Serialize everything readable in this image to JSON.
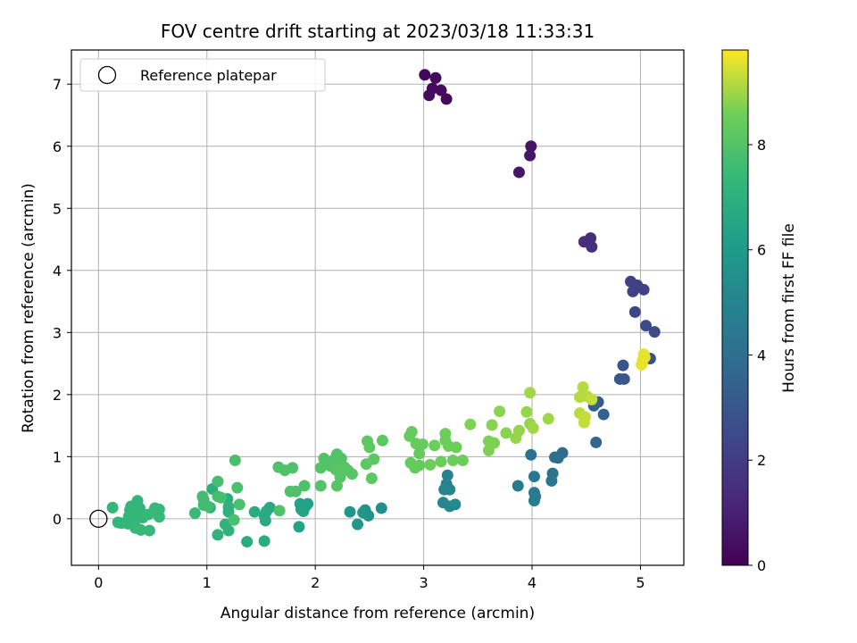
{
  "chart_data": {
    "type": "scatter",
    "title": "FOV centre drift starting at 2023/03/18 11:33:31",
    "xlabel": "Angular distance from reference (arcmin)",
    "ylabel": "Rotation from reference (arcmin)",
    "xlim": [
      -0.25,
      5.4
    ],
    "ylim": [
      -0.75,
      7.55
    ],
    "xticks": [
      0,
      1,
      2,
      3,
      4,
      5
    ],
    "yticks": [
      0,
      1,
      2,
      3,
      4,
      5,
      6,
      7
    ],
    "grid": true,
    "legend": {
      "position": "top-left",
      "entries": [
        "Reference platepar"
      ]
    },
    "reference_point": {
      "x": 0,
      "y": 0,
      "label": "Reference platepar"
    },
    "colorbar": {
      "label": "Hours from first FF file",
      "range": [
        0,
        9.8
      ],
      "ticks": [
        0,
        2,
        4,
        6,
        8
      ],
      "colormap": "viridis"
    },
    "series": [
      {
        "points": [
          {
            "x": 3.01,
            "y": 7.15,
            "c": 0.2
          },
          {
            "x": 3.11,
            "y": 7.1,
            "c": 0.25
          },
          {
            "x": 3.08,
            "y": 6.93,
            "c": 0.3
          },
          {
            "x": 3.16,
            "y": 6.9,
            "c": 0.3
          },
          {
            "x": 3.05,
            "y": 6.82,
            "c": 0.35
          },
          {
            "x": 3.21,
            "y": 6.76,
            "c": 0.35
          },
          {
            "x": 3.99,
            "y": 6.0,
            "c": 0.6
          },
          {
            "x": 3.98,
            "y": 5.85,
            "c": 0.65
          },
          {
            "x": 3.88,
            "y": 5.58,
            "c": 0.7
          },
          {
            "x": 4.48,
            "y": 4.46,
            "c": 1.4
          },
          {
            "x": 4.54,
            "y": 4.52,
            "c": 1.45
          },
          {
            "x": 4.55,
            "y": 4.38,
            "c": 1.5
          },
          {
            "x": 4.91,
            "y": 3.82,
            "c": 2.1
          },
          {
            "x": 4.97,
            "y": 3.76,
            "c": 2.15
          },
          {
            "x": 4.93,
            "y": 3.66,
            "c": 2.2
          },
          {
            "x": 5.03,
            "y": 3.69,
            "c": 2.2
          },
          {
            "x": 4.95,
            "y": 3.33,
            "c": 2.35
          },
          {
            "x": 5.05,
            "y": 3.11,
            "c": 2.5
          },
          {
            "x": 5.13,
            "y": 3.01,
            "c": 2.55
          },
          {
            "x": 5.09,
            "y": 2.58,
            "c": 2.8
          },
          {
            "x": 4.84,
            "y": 2.47,
            "c": 2.9
          },
          {
            "x": 4.81,
            "y": 2.25,
            "c": 3.0
          },
          {
            "x": 4.85,
            "y": 2.25,
            "c": 3.0
          },
          {
            "x": 4.61,
            "y": 1.88,
            "c": 3.2
          },
          {
            "x": 4.57,
            "y": 1.82,
            "c": 3.3
          },
          {
            "x": 4.66,
            "y": 1.68,
            "c": 3.4
          },
          {
            "x": 4.59,
            "y": 1.23,
            "c": 3.6
          },
          {
            "x": 4.28,
            "y": 1.06,
            "c": 3.8
          },
          {
            "x": 4.21,
            "y": 0.99,
            "c": 3.9
          },
          {
            "x": 4.24,
            "y": 0.98,
            "c": 3.9
          },
          {
            "x": 3.99,
            "y": 1.03,
            "c": 4.1
          },
          {
            "x": 4.19,
            "y": 0.73,
            "c": 4.2
          },
          {
            "x": 4.18,
            "y": 0.61,
            "c": 4.3
          },
          {
            "x": 4.02,
            "y": 0.68,
            "c": 4.4
          },
          {
            "x": 3.87,
            "y": 0.53,
            "c": 4.5
          },
          {
            "x": 4.02,
            "y": 0.42,
            "c": 4.5
          },
          {
            "x": 4.03,
            "y": 0.36,
            "c": 4.6
          },
          {
            "x": 4.02,
            "y": 0.29,
            "c": 4.6
          },
          {
            "x": 3.22,
            "y": 0.7,
            "c": 4.9
          },
          {
            "x": 3.21,
            "y": 0.56,
            "c": 4.9
          },
          {
            "x": 3.19,
            "y": 0.47,
            "c": 5.0
          },
          {
            "x": 3.24,
            "y": 0.47,
            "c": 5.0
          },
          {
            "x": 3.18,
            "y": 0.26,
            "c": 5.1
          },
          {
            "x": 3.24,
            "y": 0.2,
            "c": 5.1
          },
          {
            "x": 3.29,
            "y": 0.23,
            "c": 5.2
          },
          {
            "x": 2.61,
            "y": 0.17,
            "c": 5.5
          },
          {
            "x": 2.46,
            "y": 0.14,
            "c": 5.6
          },
          {
            "x": 2.49,
            "y": 0.05,
            "c": 5.6
          },
          {
            "x": 2.44,
            "y": 0.1,
            "c": 5.7
          },
          {
            "x": 2.32,
            "y": 0.11,
            "c": 5.8
          },
          {
            "x": 2.39,
            "y": -0.09,
            "c": 5.8
          },
          {
            "x": 1.93,
            "y": 0.24,
            "c": 6.2
          },
          {
            "x": 1.87,
            "y": 0.15,
            "c": 6.3
          },
          {
            "x": 1.91,
            "y": 0.2,
            "c": 6.3
          },
          {
            "x": 1.86,
            "y": 0.24,
            "c": 6.3
          },
          {
            "x": 1.89,
            "y": 0.12,
            "c": 6.4
          },
          {
            "x": 1.85,
            "y": -0.13,
            "c": 6.4
          },
          {
            "x": 1.58,
            "y": 0.18,
            "c": 6.6
          },
          {
            "x": 1.55,
            "y": 0.12,
            "c": 6.6
          },
          {
            "x": 1.53,
            "y": 0.05,
            "c": 6.7
          },
          {
            "x": 1.54,
            "y": -0.03,
            "c": 6.7
          },
          {
            "x": 1.44,
            "y": 0.11,
            "c": 6.8
          },
          {
            "x": 1.53,
            "y": -0.36,
            "c": 6.8
          },
          {
            "x": 1.37,
            "y": -0.37,
            "c": 6.8
          },
          {
            "x": 1.05,
            "y": 0.48,
            "c": 6.9
          },
          {
            "x": 1.19,
            "y": 0.32,
            "c": 6.9
          },
          {
            "x": 1.2,
            "y": 0.19,
            "c": 7.0
          },
          {
            "x": 1.2,
            "y": 0.11,
            "c": 7.0
          },
          {
            "x": 1.17,
            "y": -0.09,
            "c": 7.0
          },
          {
            "x": 1.2,
            "y": -0.19,
            "c": 7.1
          },
          {
            "x": 1.1,
            "y": -0.26,
            "c": 7.1
          },
          {
            "x": 1.03,
            "y": 0.18,
            "c": 7.1
          },
          {
            "x": 0.36,
            "y": 0.29,
            "c": 7.2
          },
          {
            "x": 0.3,
            "y": 0.2,
            "c": 7.2
          },
          {
            "x": 0.29,
            "y": 0.14,
            "c": 7.2
          },
          {
            "x": 0.38,
            "y": 0.17,
            "c": 7.2
          },
          {
            "x": 0.34,
            "y": 0.08,
            "c": 7.3
          },
          {
            "x": 0.28,
            "y": 0.04,
            "c": 7.3
          },
          {
            "x": 0.34,
            "y": -0.03,
            "c": 7.3
          },
          {
            "x": 0.41,
            "y": 0.02,
            "c": 7.3
          },
          {
            "x": 0.27,
            "y": -0.08,
            "c": 7.3
          },
          {
            "x": 0.21,
            "y": -0.07,
            "c": 7.3
          },
          {
            "x": 0.18,
            "y": -0.06,
            "c": 7.3
          },
          {
            "x": 0.34,
            "y": -0.15,
            "c": 7.4
          },
          {
            "x": 0.39,
            "y": -0.18,
            "c": 7.4
          },
          {
            "x": 0.47,
            "y": -0.19,
            "c": 7.4
          },
          {
            "x": 0.46,
            "y": 0.07,
            "c": 7.4
          },
          {
            "x": 0.52,
            "y": 0.17,
            "c": 7.4
          },
          {
            "x": 0.56,
            "y": 0.15,
            "c": 7.4
          },
          {
            "x": 0.56,
            "y": 0.03,
            "c": 7.4
          },
          {
            "x": 0.13,
            "y": 0.18,
            "c": 7.3
          },
          {
            "x": 0.89,
            "y": 0.09,
            "c": 7.5
          },
          {
            "x": 0.96,
            "y": 0.36,
            "c": 7.6
          },
          {
            "x": 0.97,
            "y": 0.31,
            "c": 7.6
          },
          {
            "x": 0.97,
            "y": 0.22,
            "c": 7.6
          },
          {
            "x": 1.01,
            "y": 0.2,
            "c": 7.6
          },
          {
            "x": 1.1,
            "y": 0.6,
            "c": 7.7
          },
          {
            "x": 1.1,
            "y": 0.36,
            "c": 7.7
          },
          {
            "x": 1.13,
            "y": 0.34,
            "c": 7.7
          },
          {
            "x": 1.26,
            "y": 0.94,
            "c": 7.8
          },
          {
            "x": 1.28,
            "y": 0.5,
            "c": 7.8
          },
          {
            "x": 1.3,
            "y": 0.23,
            "c": 7.8
          },
          {
            "x": 1.25,
            "y": -0.02,
            "c": 7.8
          },
          {
            "x": 1.66,
            "y": 0.83,
            "c": 7.9
          },
          {
            "x": 1.72,
            "y": 0.78,
            "c": 7.9
          },
          {
            "x": 1.79,
            "y": 0.82,
            "c": 7.9
          },
          {
            "x": 1.77,
            "y": 0.44,
            "c": 7.9
          },
          {
            "x": 1.82,
            "y": 0.44,
            "c": 7.9
          },
          {
            "x": 1.9,
            "y": 0.53,
            "c": 7.9
          },
          {
            "x": 1.67,
            "y": 0.13,
            "c": 7.9
          },
          {
            "x": 2.05,
            "y": 0.82,
            "c": 8.0
          },
          {
            "x": 2.05,
            "y": 0.53,
            "c": 8.0
          },
          {
            "x": 2.08,
            "y": 0.97,
            "c": 8.0
          },
          {
            "x": 2.14,
            "y": 0.92,
            "c": 8.0
          },
          {
            "x": 2.14,
            "y": 0.85,
            "c": 8.0
          },
          {
            "x": 2.19,
            "y": 0.99,
            "c": 8.0
          },
          {
            "x": 2.2,
            "y": 1.04,
            "c": 8.0
          },
          {
            "x": 2.24,
            "y": 0.97,
            "c": 8.0
          },
          {
            "x": 2.22,
            "y": 0.88,
            "c": 8.0
          },
          {
            "x": 2.27,
            "y": 0.83,
            "c": 8.1
          },
          {
            "x": 2.19,
            "y": 0.79,
            "c": 8.1
          },
          {
            "x": 2.23,
            "y": 0.67,
            "c": 8.1
          },
          {
            "x": 2.2,
            "y": 0.53,
            "c": 8.1
          },
          {
            "x": 2.3,
            "y": 0.78,
            "c": 8.1
          },
          {
            "x": 2.34,
            "y": 0.72,
            "c": 8.1
          },
          {
            "x": 2.47,
            "y": 0.88,
            "c": 8.2
          },
          {
            "x": 2.48,
            "y": 1.25,
            "c": 8.2
          },
          {
            "x": 2.5,
            "y": 1.15,
            "c": 8.2
          },
          {
            "x": 2.54,
            "y": 0.96,
            "c": 8.2
          },
          {
            "x": 2.52,
            "y": 0.65,
            "c": 8.2
          },
          {
            "x": 2.62,
            "y": 1.26,
            "c": 8.2
          },
          {
            "x": 2.87,
            "y": 1.33,
            "c": 8.4
          },
          {
            "x": 2.89,
            "y": 1.4,
            "c": 8.4
          },
          {
            "x": 2.93,
            "y": 1.21,
            "c": 8.4
          },
          {
            "x": 2.96,
            "y": 1.05,
            "c": 8.4
          },
          {
            "x": 2.99,
            "y": 1.2,
            "c": 8.4
          },
          {
            "x": 2.88,
            "y": 0.9,
            "c": 8.4
          },
          {
            "x": 2.92,
            "y": 0.82,
            "c": 8.4
          },
          {
            "x": 2.96,
            "y": 0.86,
            "c": 8.4
          },
          {
            "x": 3.06,
            "y": 0.87,
            "c": 8.5
          },
          {
            "x": 3.1,
            "y": 1.18,
            "c": 8.5
          },
          {
            "x": 3.16,
            "y": 0.92,
            "c": 8.5
          },
          {
            "x": 3.2,
            "y": 1.37,
            "c": 8.5
          },
          {
            "x": 3.2,
            "y": 1.26,
            "c": 8.5
          },
          {
            "x": 3.23,
            "y": 1.17,
            "c": 8.5
          },
          {
            "x": 3.3,
            "y": 1.15,
            "c": 8.5
          },
          {
            "x": 3.27,
            "y": 0.94,
            "c": 8.5
          },
          {
            "x": 3.36,
            "y": 0.94,
            "c": 8.5
          },
          {
            "x": 3.43,
            "y": 1.52,
            "c": 8.7
          },
          {
            "x": 3.6,
            "y": 1.25,
            "c": 8.7
          },
          {
            "x": 3.65,
            "y": 1.22,
            "c": 8.7
          },
          {
            "x": 3.6,
            "y": 1.1,
            "c": 8.7
          },
          {
            "x": 3.63,
            "y": 1.51,
            "c": 8.8
          },
          {
            "x": 3.7,
            "y": 1.73,
            "c": 8.8
          },
          {
            "x": 3.76,
            "y": 1.38,
            "c": 8.8
          },
          {
            "x": 3.85,
            "y": 1.3,
            "c": 8.9
          },
          {
            "x": 3.88,
            "y": 1.42,
            "c": 8.9
          },
          {
            "x": 3.95,
            "y": 1.72,
            "c": 8.9
          },
          {
            "x": 3.98,
            "y": 1.53,
            "c": 8.9
          },
          {
            "x": 4.01,
            "y": 1.46,
            "c": 9.0
          },
          {
            "x": 3.98,
            "y": 2.03,
            "c": 9.0
          },
          {
            "x": 4.15,
            "y": 1.61,
            "c": 9.0
          },
          {
            "x": 4.47,
            "y": 2.12,
            "c": 9.2
          },
          {
            "x": 4.44,
            "y": 1.96,
            "c": 9.2
          },
          {
            "x": 4.51,
            "y": 1.97,
            "c": 9.2
          },
          {
            "x": 4.44,
            "y": 1.7,
            "c": 9.2
          },
          {
            "x": 4.49,
            "y": 1.64,
            "c": 9.3
          },
          {
            "x": 4.48,
            "y": 1.55,
            "c": 9.3
          },
          {
            "x": 4.55,
            "y": 1.92,
            "c": 9.3
          },
          {
            "x": 5.03,
            "y": 2.65,
            "c": 9.6
          },
          {
            "x": 5.04,
            "y": 2.6,
            "c": 9.6
          },
          {
            "x": 5.02,
            "y": 2.55,
            "c": 9.6
          },
          {
            "x": 5.01,
            "y": 2.48,
            "c": 9.6
          }
        ]
      }
    ]
  }
}
